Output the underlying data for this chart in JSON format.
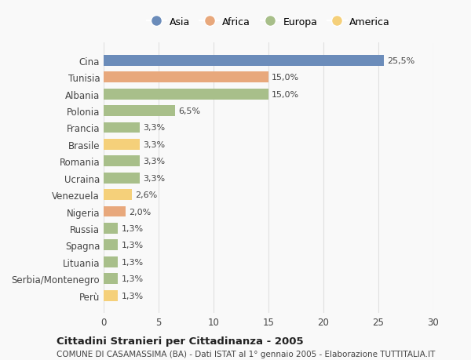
{
  "countries": [
    "Cina",
    "Tunisia",
    "Albania",
    "Polonia",
    "Francia",
    "Brasile",
    "Romania",
    "Ucraina",
    "Venezuela",
    "Nigeria",
    "Russia",
    "Spagna",
    "Lituania",
    "Serbia/Montenegro",
    "Perù"
  ],
  "values": [
    25.5,
    15.0,
    15.0,
    6.5,
    3.3,
    3.3,
    3.3,
    3.3,
    2.6,
    2.0,
    1.3,
    1.3,
    1.3,
    1.3,
    1.3
  ],
  "labels": [
    "25,5%",
    "15,0%",
    "15,0%",
    "6,5%",
    "3,3%",
    "3,3%",
    "3,3%",
    "3,3%",
    "2,6%",
    "2,0%",
    "1,3%",
    "1,3%",
    "1,3%",
    "1,3%",
    "1,3%"
  ],
  "continents": [
    "Asia",
    "Africa",
    "Europa",
    "Europa",
    "Europa",
    "America",
    "Europa",
    "Europa",
    "America",
    "Africa",
    "Europa",
    "Europa",
    "Europa",
    "Europa",
    "America"
  ],
  "continent_colors": {
    "Asia": "#6b8cba",
    "Africa": "#e8a87c",
    "Europa": "#a8bf8a",
    "America": "#f5d07a"
  },
  "legend_order": [
    "Asia",
    "Africa",
    "Europa",
    "America"
  ],
  "xlim": [
    0,
    30
  ],
  "xticks": [
    0,
    5,
    10,
    15,
    20,
    25,
    30
  ],
  "title": "Cittadini Stranieri per Cittadinanza - 2005",
  "subtitle": "COMUNE DI CASAMASSIMA (BA) - Dati ISTAT al 1° gennaio 2005 - Elaborazione TUTTITALIA.IT",
  "bg_color": "#f9f9f9",
  "grid_color": "#e0e0e0",
  "bar_height": 0.65
}
